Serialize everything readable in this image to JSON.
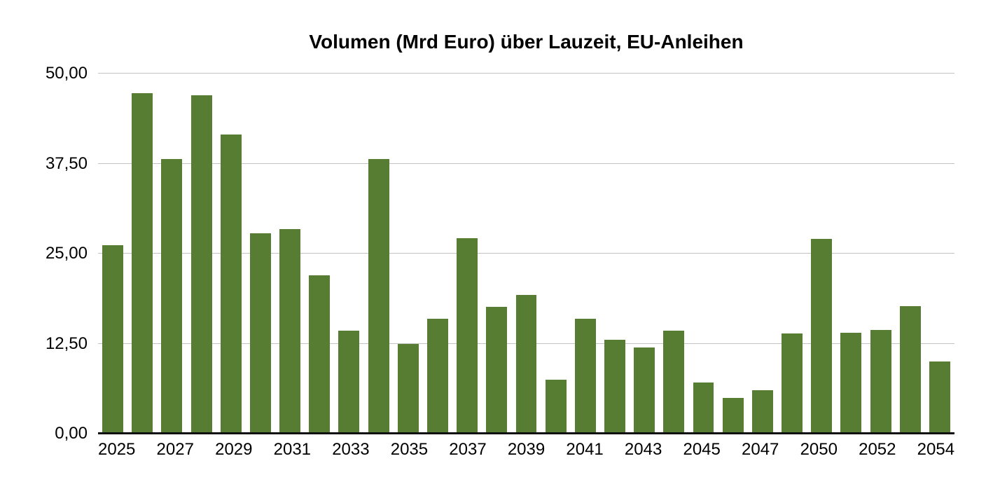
{
  "chart_data": {
    "type": "bar",
    "title": "Volumen (Mrd Euro) über Lauzeit, EU-Anleihen",
    "xlabel": "",
    "ylabel": "",
    "categories": [
      "2025",
      "2026",
      "2027",
      "2028",
      "2029",
      "2030",
      "2031",
      "2032",
      "2033",
      "2034",
      "2035",
      "2036",
      "2037",
      "2038",
      "2039",
      "2040",
      "2041",
      "2042",
      "2043",
      "2044",
      "2045",
      "2046",
      "2047",
      "2048",
      "2050",
      "2051",
      "2052",
      "2053",
      "2054"
    ],
    "values": [
      26.2,
      47.3,
      38.1,
      47.0,
      41.5,
      27.8,
      28.4,
      22.0,
      14.3,
      38.1,
      12.5,
      16.0,
      27.1,
      17.6,
      19.3,
      7.5,
      16.0,
      13.0,
      12.0,
      14.3,
      7.1,
      5.0,
      6.0,
      13.9,
      27.0,
      14.0,
      14.4,
      17.7,
      10.0
    ],
    "x_tick_labels": [
      "2025",
      "2027",
      "2029",
      "2031",
      "2033",
      "2035",
      "2037",
      "2039",
      "2041",
      "2043",
      "2045",
      "2047",
      "2050",
      "2052",
      "2054"
    ],
    "x_tick_every_other_bar": true,
    "y_tick_values": [
      0,
      12.5,
      25,
      37.5,
      50
    ],
    "y_tick_labels": [
      "0,00",
      "12,50",
      "25,00",
      "37,50",
      "50,00"
    ],
    "ylim": [
      0,
      50
    ],
    "grid": true,
    "legend_position": "none",
    "bar_color": "#567d32",
    "gridline_color": "#c3c3c3",
    "axis_line_color": "#111111",
    "text_color": "#000000",
    "background_color": "#ffffff"
  }
}
